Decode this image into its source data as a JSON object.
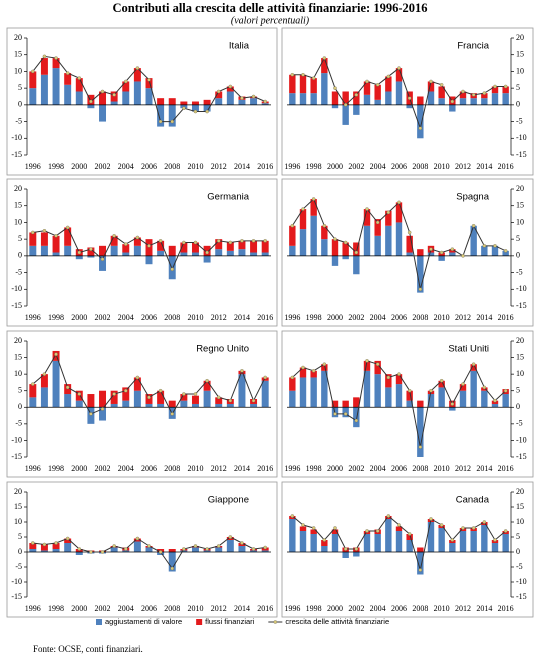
{
  "title": "Contributi alla crescita delle attività finanziarie: 1996-2016",
  "subtitle": "(valori percentuali)",
  "source": "Fonte: OCSE, conti finanziari.",
  "chart_data": [
    {
      "type": "bar",
      "title": "Italia",
      "y_axis_side": "left",
      "categories": [
        1996,
        null,
        1998,
        null,
        2000,
        null,
        2002,
        null,
        2004,
        null,
        2006,
        null,
        2008,
        null,
        2010,
        null,
        2012,
        null,
        2014,
        null,
        2016
      ],
      "ylim": [
        -15,
        20
      ],
      "yticks": [
        -15,
        -10,
        -5,
        0,
        5,
        10,
        15,
        20
      ],
      "series": [
        {
          "name": "aggiustamenti di valore",
          "color": "#4f81bd",
          "values": [
            5,
            9,
            11,
            6,
            4,
            -1,
            -5,
            1,
            4,
            7,
            5,
            -6.5,
            -6.5,
            -1,
            -2,
            -2,
            2,
            4,
            1.5,
            2,
            0.5
          ]
        },
        {
          "name": "flussi finanziari",
          "color": "#e31a1c",
          "values": [
            5,
            5,
            3,
            3.5,
            4,
            3,
            4,
            3,
            3,
            4,
            3,
            2,
            2,
            1,
            1,
            1.5,
            2,
            1.5,
            1,
            0.5,
            0.5
          ]
        },
        {
          "name": "crescita delle attività finanziarie",
          "type": "line",
          "color": "#333333",
          "marker_color": "#d8c878",
          "values": [
            10,
            14.5,
            14,
            9.5,
            8,
            1,
            4,
            3,
            7,
            11,
            7.5,
            -5,
            -5,
            -1,
            -2,
            -2,
            4,
            5.5,
            2,
            2.5,
            1
          ]
        }
      ]
    },
    {
      "type": "bar",
      "title": "Francia",
      "y_axis_side": "right",
      "categories": [
        1996,
        null,
        1998,
        null,
        2000,
        null,
        2002,
        null,
        2004,
        null,
        2006,
        null,
        2008,
        null,
        2010,
        null,
        2012,
        null,
        2014,
        null,
        2016
      ],
      "ylim": [
        -15,
        20
      ],
      "yticks": [
        -15,
        -10,
        -5,
        0,
        5,
        10,
        15,
        20
      ],
      "series": [
        {
          "name": "aggiustamenti di valore",
          "color": "#4f81bd",
          "values": [
            3.5,
            3.5,
            3.5,
            9.5,
            -1,
            -6,
            -3,
            3,
            1.5,
            4,
            7,
            -1,
            -10,
            4,
            2,
            -2,
            2,
            2,
            2,
            3.5,
            3.5
          ]
        },
        {
          "name": "flussi finanziari",
          "color": "#e31a1c",
          "values": [
            5.5,
            5.5,
            4.5,
            4.5,
            4,
            4,
            4,
            4,
            4.5,
            4.5,
            4,
            4,
            2.5,
            3,
            3.5,
            2.5,
            2,
            1.5,
            1.5,
            2,
            2
          ]
        },
        {
          "name": "crescita delle attività finanziarie",
          "type": "line",
          "color": "#333333",
          "marker_color": "#d8c878",
          "values": [
            9,
            9,
            8,
            14,
            5,
            0,
            3,
            7,
            6,
            8.5,
            11,
            2,
            -7,
            7,
            6,
            1,
            4,
            3,
            3.5,
            5.5,
            5.5
          ]
        }
      ]
    },
    {
      "type": "bar",
      "title": "Germania",
      "y_axis_side": "left",
      "categories": [
        1996,
        null,
        1998,
        null,
        2000,
        null,
        2002,
        null,
        2004,
        null,
        2006,
        null,
        2008,
        null,
        2010,
        null,
        2012,
        null,
        2014,
        null,
        2016
      ],
      "ylim": [
        -15,
        20
      ],
      "yticks": [
        -15,
        -10,
        -5,
        0,
        5,
        10,
        15,
        20
      ],
      "series": [
        {
          "name": "aggiustamenti di valore",
          "color": "#4f81bd",
          "values": [
            3,
            3,
            1,
            3,
            -1,
            -0.5,
            -4.5,
            3,
            1,
            3,
            -2.5,
            1.5,
            -7,
            1,
            1,
            -2,
            2,
            1.5,
            2,
            1,
            1
          ]
        },
        {
          "name": "flussi finanziari",
          "color": "#e31a1c",
          "values": [
            4,
            4,
            5,
            5.5,
            2,
            2.5,
            3,
            3,
            2.5,
            2.5,
            5,
            3,
            3,
            3,
            3,
            3,
            3,
            2.5,
            2.5,
            3.5,
            3.5
          ]
        },
        {
          "name": "crescita delle attività finanziarie",
          "type": "line",
          "color": "#333333",
          "marker_color": "#d8c878",
          "values": [
            7,
            7.5,
            6,
            8.5,
            1,
            2,
            -1,
            6,
            3.5,
            5.5,
            3,
            4.5,
            -4,
            4,
            4,
            1,
            4.5,
            4,
            4.5,
            4.5,
            4.5
          ]
        }
      ]
    },
    {
      "type": "bar",
      "title": "Spagna",
      "y_axis_side": "right",
      "categories": [
        1996,
        null,
        1998,
        null,
        2000,
        null,
        2002,
        null,
        2004,
        null,
        2006,
        null,
        2008,
        null,
        2010,
        null,
        2012,
        null,
        2014,
        null,
        2016
      ],
      "ylim": [
        -15,
        20
      ],
      "yticks": [
        -15,
        -10,
        -5,
        0,
        5,
        10,
        15,
        20
      ],
      "series": [
        {
          "name": "aggiustamenti di valore",
          "color": "#4f81bd",
          "values": [
            3,
            8,
            12,
            5,
            -3,
            -1,
            -5.5,
            9,
            6,
            9,
            10,
            1,
            -11,
            1,
            -1.5,
            1,
            0,
            9,
            3,
            3,
            1.5
          ]
        },
        {
          "name": "flussi finanziari",
          "color": "#e31a1c",
          "values": [
            6,
            6,
            5,
            4,
            5,
            4,
            4,
            5,
            5,
            4.5,
            6,
            5,
            2,
            2,
            1,
            1,
            0,
            0,
            0,
            0,
            0
          ]
        },
        {
          "name": "crescita delle attività finanziarie",
          "type": "line",
          "color": "#333333",
          "marker_color": "#d8c878",
          "values": [
            9,
            14,
            17,
            9,
            5,
            4,
            1,
            14,
            10,
            13,
            16,
            7,
            -10,
            2,
            1,
            2,
            0,
            9,
            3,
            3,
            1.5
          ]
        }
      ]
    },
    {
      "type": "bar",
      "title": "Regno Unito",
      "y_axis_side": "left",
      "categories": [
        1996,
        null,
        1998,
        null,
        2000,
        null,
        2002,
        null,
        2004,
        null,
        2006,
        null,
        2008,
        null,
        2010,
        null,
        2012,
        null,
        2014,
        null,
        2016
      ],
      "ylim": [
        -15,
        20
      ],
      "yticks": [
        -15,
        -10,
        -5,
        0,
        5,
        10,
        15,
        20
      ],
      "series": [
        {
          "name": "aggiustamenti di valore",
          "color": "#4f81bd",
          "values": [
            3,
            6,
            14,
            4,
            2,
            -5,
            -4,
            1,
            2,
            5,
            1,
            1,
            -3.5,
            2,
            1,
            5,
            1,
            1,
            10,
            1,
            8
          ]
        },
        {
          "name": "flussi finanziari",
          "color": "#e31a1c",
          "values": [
            4,
            4,
            3,
            3,
            3,
            4,
            5,
            4,
            4,
            4,
            3,
            4,
            2,
            2,
            2.5,
            3,
            2,
            1.5,
            1,
            1.5,
            1
          ]
        },
        {
          "name": "crescita delle attività finanziarie",
          "type": "line",
          "color": "#333333",
          "marker_color": "#d8c878",
          "values": [
            7,
            10,
            16,
            6,
            4,
            -2,
            -0.5,
            4,
            5,
            9,
            3,
            5,
            -2,
            4,
            4,
            8,
            3,
            2,
            11,
            2,
            9
          ]
        }
      ]
    },
    {
      "type": "bar",
      "title": "Stati Uniti",
      "y_axis_side": "right",
      "categories": [
        1996,
        null,
        1998,
        null,
        2000,
        null,
        2002,
        null,
        2004,
        null,
        2006,
        null,
        2008,
        null,
        2010,
        null,
        2012,
        null,
        2014,
        null,
        2016
      ],
      "ylim": [
        -15,
        20
      ],
      "yticks": [
        -15,
        -10,
        -5,
        0,
        5,
        10,
        15,
        20
      ],
      "series": [
        {
          "name": "aggiustamenti di valore",
          "color": "#4f81bd",
          "values": [
            5,
            9,
            9,
            11,
            -3,
            -3,
            -6,
            11,
            10,
            6,
            7,
            2,
            -15,
            4,
            6,
            -1,
            5,
            11,
            5,
            1,
            4
          ]
        },
        {
          "name": "flussi finanziari",
          "color": "#e31a1c",
          "values": [
            4,
            3,
            2,
            2,
            2,
            2,
            3,
            3,
            4,
            4,
            3,
            3,
            2,
            1,
            2,
            2,
            2,
            2,
            1,
            1,
            1.5
          ]
        },
        {
          "name": "crescita delle attività finanziarie",
          "type": "line",
          "color": "#333333",
          "marker_color": "#d8c878",
          "values": [
            9,
            12,
            11,
            13,
            -2,
            -2,
            -4,
            14,
            13,
            9,
            10,
            5,
            -12,
            5,
            8,
            1,
            7,
            13,
            6,
            2,
            5
          ]
        }
      ]
    },
    {
      "type": "bar",
      "title": "Giappone",
      "y_axis_side": "left",
      "categories": [
        1996,
        null,
        1998,
        null,
        2000,
        null,
        2002,
        null,
        2004,
        null,
        2006,
        null,
        2008,
        null,
        2010,
        null,
        2012,
        null,
        2014,
        null,
        2016
      ],
      "ylim": [
        -15,
        20
      ],
      "yticks": [
        -15,
        -10,
        -5,
        0,
        5,
        10,
        15,
        20
      ],
      "series": [
        {
          "name": "aggiustamenti di valore",
          "color": "#4f81bd",
          "values": [
            1,
            0.5,
            1,
            3,
            -1,
            -0.5,
            -0.5,
            1.5,
            0.5,
            3.5,
            1.5,
            -1,
            -6.5,
            0.5,
            1.5,
            0.5,
            1.5,
            4,
            2,
            0.5,
            0.5
          ]
        },
        {
          "name": "flussi finanziari",
          "color": "#e31a1c",
          "values": [
            2,
            2,
            2,
            1.5,
            1,
            0.5,
            0.5,
            0.5,
            1,
            1,
            0.5,
            1,
            1,
            0.5,
            0.5,
            0.5,
            0.5,
            1,
            1,
            0.5,
            1
          ]
        },
        {
          "name": "crescita delle attività finanziarie",
          "type": "line",
          "color": "#333333",
          "marker_color": "#d8c878",
          "values": [
            3,
            2.5,
            3,
            4.5,
            1,
            0,
            0,
            2,
            1,
            4.5,
            2,
            0,
            -5.5,
            1,
            2,
            1,
            2,
            5,
            3,
            1,
            1.5
          ]
        }
      ]
    },
    {
      "type": "bar",
      "title": "Canada",
      "y_axis_side": "right",
      "categories": [
        1996,
        null,
        1998,
        null,
        2000,
        null,
        2002,
        null,
        2004,
        null,
        2006,
        null,
        2008,
        null,
        2010,
        null,
        2012,
        null,
        2014,
        null,
        2016
      ],
      "ylim": [
        -15,
        20
      ],
      "yticks": [
        -15,
        -10,
        -5,
        0,
        5,
        10,
        15,
        20
      ],
      "series": [
        {
          "name": "aggiustamenti di valore",
          "color": "#4f81bd",
          "values": [
            11,
            7,
            6,
            2,
            6,
            -2,
            -1.5,
            6,
            6,
            11,
            7,
            4,
            -7.5,
            10,
            8,
            3,
            7,
            7,
            9,
            3,
            6
          ]
        },
        {
          "name": "flussi finanziari",
          "color": "#e31a1c",
          "values": [
            1,
            1.5,
            1.5,
            2,
            1.5,
            1.5,
            1.5,
            1,
            1.5,
            1,
            1.5,
            2,
            1.5,
            1,
            1,
            1,
            1,
            1,
            1,
            1,
            1
          ]
        },
        {
          "name": "crescita delle attività finanziarie",
          "type": "line",
          "color": "#333333",
          "marker_color": "#d8c878",
          "values": [
            12,
            9,
            8,
            4,
            8,
            1,
            1,
            7,
            7,
            12,
            9,
            6,
            -6,
            11,
            9,
            4,
            8,
            8,
            10,
            4,
            7
          ]
        }
      ]
    }
  ]
}
